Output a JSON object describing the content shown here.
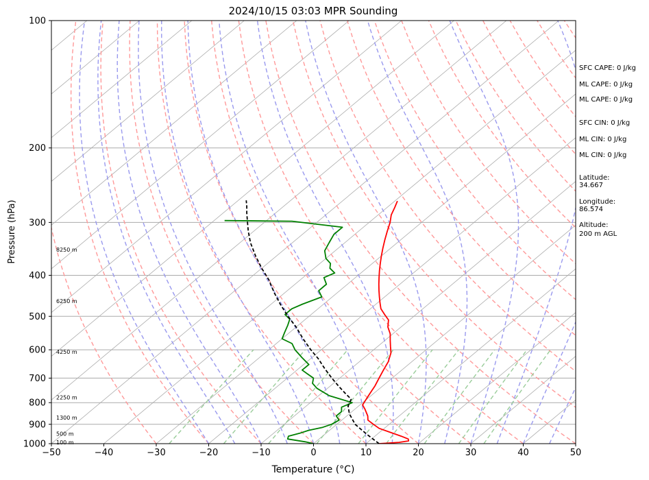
{
  "chart_data": {
    "type": "line",
    "title": "2024/10/15 03:03 MPR Sounding",
    "xlabel": "Temperature (°C)",
    "ylabel": "Pressure (hPa)",
    "xlim": [
      -50,
      50
    ],
    "ylim": [
      1000,
      100
    ],
    "y_scale": "log",
    "skew": "skew-T",
    "grid": true,
    "x_ticks": [
      "−50",
      "−40",
      "−30",
      "−20",
      "−10",
      "0",
      "10",
      "20",
      "30",
      "40",
      "50"
    ],
    "x_tick_values": [
      -50,
      -40,
      -30,
      -20,
      -10,
      0,
      10,
      20,
      30,
      40,
      50
    ],
    "y_ticks": [
      "1000",
      "900",
      "800",
      "700",
      "600",
      "500",
      "400",
      "300",
      "200",
      "100"
    ],
    "y_tick_values": [
      1000,
      900,
      800,
      700,
      600,
      500,
      400,
      300,
      200,
      100
    ],
    "colors": {
      "temperature": "#ff0000",
      "dewpoint": "#008000",
      "parcel": "#000000",
      "dry_adiabats": "#ff9999",
      "moist_adiabats": "#9999ee",
      "mixing_ratio": "#99cc99",
      "isotherms": "#aaaaaa",
      "isobars": "#aaaaaa"
    },
    "series": [
      {
        "key": "temperature",
        "points": [
          [
            12.5,
            1000
          ],
          [
            16,
            993
          ],
          [
            17.5,
            985
          ],
          [
            17,
            975
          ],
          [
            15,
            960
          ],
          [
            12,
            940
          ],
          [
            9,
            920
          ],
          [
            7,
            900
          ],
          [
            5,
            880
          ],
          [
            4,
            860
          ],
          [
            2,
            830
          ],
          [
            0.5,
            810
          ],
          [
            0,
            790
          ],
          [
            -0.5,
            770
          ],
          [
            -1,
            750
          ],
          [
            -1.5,
            730
          ],
          [
            -2.5,
            700
          ],
          [
            -3.5,
            670
          ],
          [
            -4.5,
            640
          ],
          [
            -6,
            610
          ],
          [
            -7.5,
            590
          ],
          [
            -9,
            570
          ],
          [
            -10.5,
            550
          ],
          [
            -12.5,
            530
          ],
          [
            -14,
            510
          ],
          [
            -16,
            495
          ],
          [
            -18,
            480
          ],
          [
            -19.5,
            465
          ],
          [
            -21,
            450
          ],
          [
            -22.5,
            435
          ],
          [
            -24,
            420
          ],
          [
            -25.5,
            405
          ],
          [
            -27,
            390
          ],
          [
            -28.5,
            375
          ],
          [
            -30,
            360
          ],
          [
            -31.5,
            345
          ],
          [
            -33,
            330
          ],
          [
            -34.5,
            315
          ],
          [
            -36,
            300
          ],
          [
            -37.5,
            288
          ],
          [
            -38.5,
            277
          ],
          [
            -39.5,
            267
          ]
        ]
      },
      {
        "key": "dewpoint",
        "points": [
          [
            0,
            1000
          ],
          [
            -2,
            990
          ],
          [
            -6,
            975
          ],
          [
            -6.5,
            960
          ],
          [
            -5,
            945
          ],
          [
            -4,
            930
          ],
          [
            -2,
            915
          ],
          [
            -1,
            900
          ],
          [
            -0.5,
            880
          ],
          [
            -2,
            860
          ],
          [
            -2,
            840
          ],
          [
            -3,
            820
          ],
          [
            -2,
            800
          ],
          [
            -8,
            770
          ],
          [
            -12,
            740
          ],
          [
            -14,
            720
          ],
          [
            -15,
            700
          ],
          [
            -17,
            685
          ],
          [
            -19,
            670
          ],
          [
            -19,
            650
          ],
          [
            -22,
            625
          ],
          [
            -25,
            600
          ],
          [
            -27,
            580
          ],
          [
            -30,
            565
          ],
          [
            -31,
            545
          ],
          [
            -32,
            525
          ],
          [
            -33,
            508
          ],
          [
            -35,
            495
          ],
          [
            -35,
            480
          ],
          [
            -34,
            468
          ],
          [
            -32,
            450
          ],
          [
            -34,
            435
          ],
          [
            -34,
            420
          ],
          [
            -36,
            405
          ],
          [
            -35,
            395
          ],
          [
            -37,
            385
          ],
          [
            -38,
            375
          ],
          [
            -40,
            365
          ],
          [
            -42,
            350
          ],
          [
            -43,
            335
          ],
          [
            -44,
            320
          ],
          [
            -44,
            308
          ],
          [
            -55,
            298
          ],
          [
            -68,
            297
          ]
        ]
      },
      {
        "key": "parcel",
        "points": [
          [
            12.5,
            1000
          ],
          [
            8,
            950
          ],
          [
            3.5,
            900
          ],
          [
            0,
            850
          ],
          [
            -2,
            815
          ],
          [
            -3,
            785
          ],
          [
            -5.5,
            760
          ],
          [
            -8.5,
            730
          ],
          [
            -11.5,
            700
          ],
          [
            -15,
            665
          ],
          [
            -18.5,
            630
          ],
          [
            -22,
            600
          ],
          [
            -26,
            565
          ],
          [
            -30,
            530
          ],
          [
            -34,
            500
          ],
          [
            -38,
            470
          ],
          [
            -42,
            440
          ],
          [
            -46,
            410
          ],
          [
            -50,
            385
          ],
          [
            -54,
            360
          ],
          [
            -58,
            335
          ],
          [
            -61,
            315
          ],
          [
            -63.5,
            298
          ],
          [
            -65.5,
            285
          ],
          [
            -67,
            275
          ],
          [
            -68.5,
            266
          ]
        ]
      }
    ],
    "height_labels": [
      "100 m",
      "500 m",
      "1300 m",
      "2250 m",
      "4250 m",
      "6250 m",
      "8250 m"
    ],
    "height_label_pressures": [
      993,
      948,
      868,
      778,
      606,
      460,
      348
    ]
  },
  "sidebar": {
    "sfc_cape": "SFC CAPE: 0 J/kg",
    "ml_cape_1": "ML CAPE: 0 J/kg",
    "ml_cape_2": "ML CAPE: 0 J/kg",
    "sfc_cin": "SFC CIN: 0 J/kg",
    "ml_cin_1": "ML CIN: 0 J/kg",
    "ml_cin_2": "ML CIN: 0 J/kg",
    "latitude_label": "Latitude:",
    "latitude_value": "34.667",
    "longitude_label": "Longitude:",
    "longitude_value": "86.574",
    "altitude_label": "Altitude:",
    "altitude_value": "200 m AGL"
  }
}
